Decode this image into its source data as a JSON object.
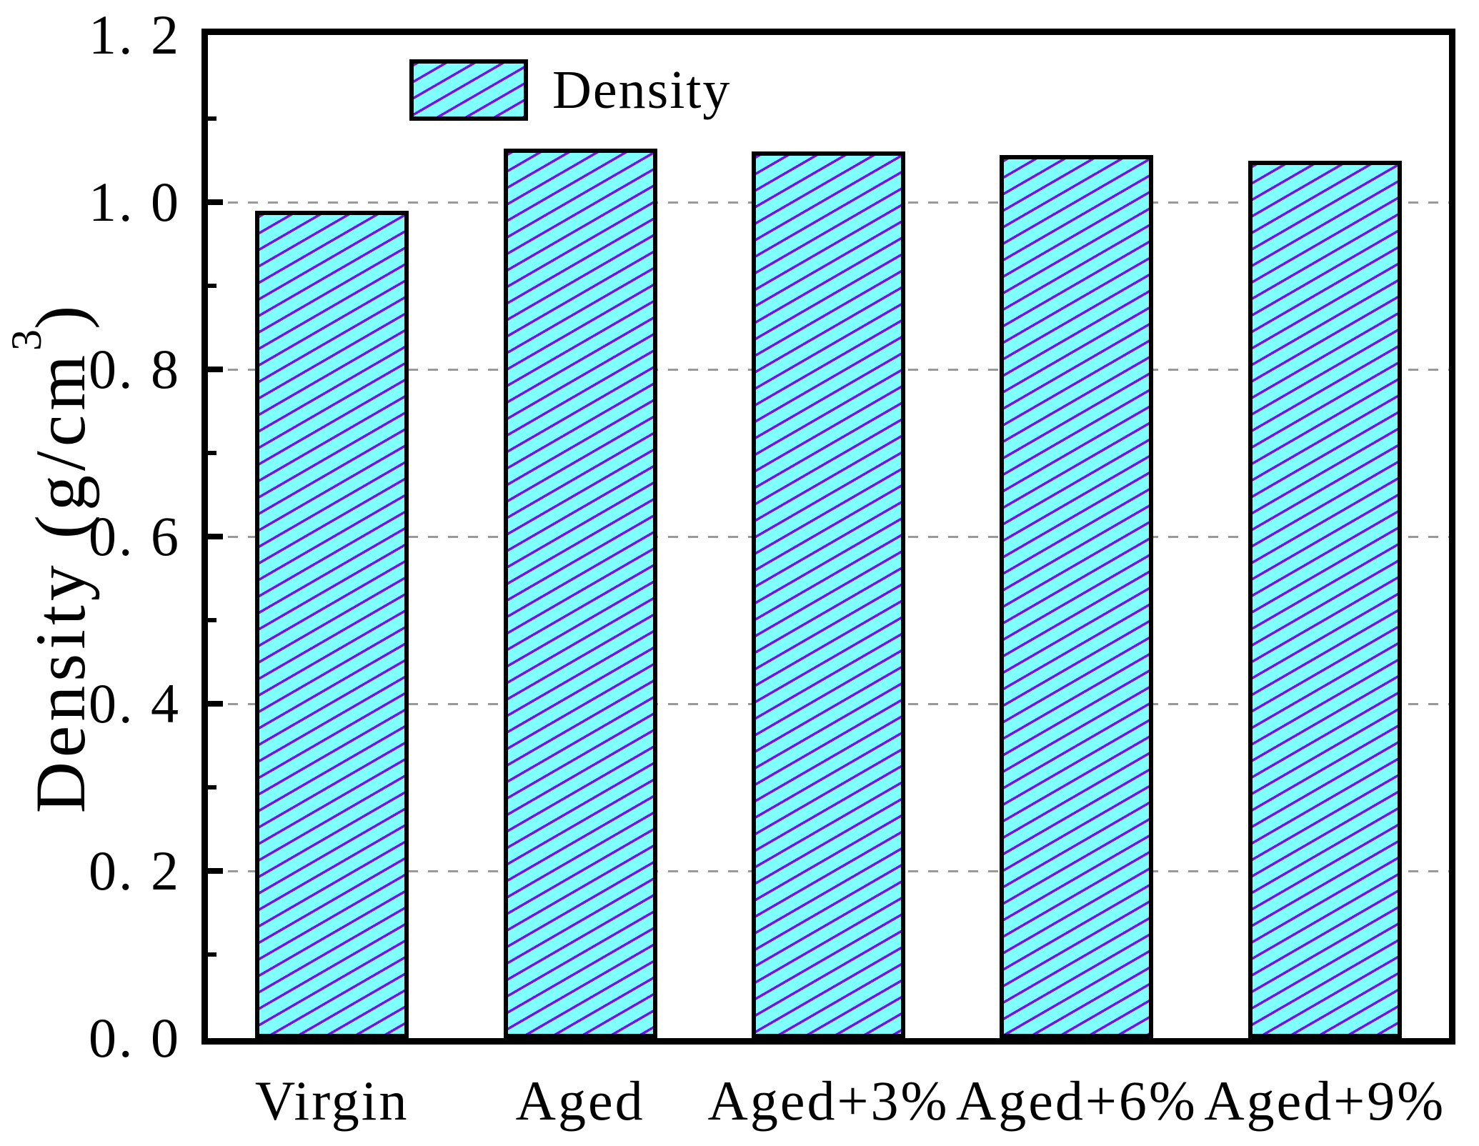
{
  "chart_data": {
    "type": "bar",
    "title": "",
    "categories": [
      "Virgin",
      "Aged",
      "Aged+3%",
      "Aged+6%",
      "Aged+9%"
    ],
    "series": [
      {
        "name": "Density",
        "values": [
          0.99,
          1.064,
          1.061,
          1.056,
          1.05
        ]
      }
    ],
    "ylabel": "Density (g/cm³)",
    "ylabel_parts": {
      "main": "Density (g/cm",
      "sup": "3",
      "close": ")"
    },
    "xlabel": "",
    "ylim": [
      0,
      1.2
    ],
    "ytick_values": [
      0,
      0.2,
      0.4,
      0.6,
      0.8,
      1.0,
      1.2
    ],
    "ytick_labels": [
      "0. 0",
      "0. 2",
      "0. 4",
      "0. 6",
      "0. 8",
      "1. 0",
      "1. 2"
    ],
    "minor_tick_values": [
      0.1,
      0.3,
      0.5,
      0.7,
      0.9,
      1.1
    ],
    "grid_values": [
      0.2,
      0.4,
      0.6,
      0.8,
      1.0
    ],
    "grid_style": "dashed",
    "legend": {
      "label": "Density",
      "position": "top-left-inside"
    },
    "hatch": {
      "style": "forward-diagonal",
      "angle_deg": 30
    },
    "colors": {
      "bar_fill": "#80FFFF",
      "hatch_line": "#7B10E6",
      "bar_border": "#000000",
      "frame": "#000000",
      "gridline": "#999999",
      "text": "#000000",
      "background": "#FFFFFF"
    }
  }
}
